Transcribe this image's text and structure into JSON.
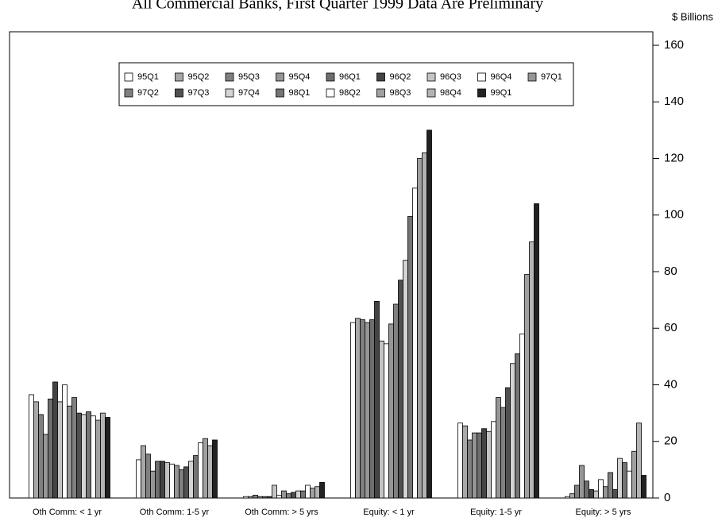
{
  "chart_data": {
    "type": "bar",
    "title": "All Commercial Banks, First Quarter 1999 Data Are Preliminary",
    "y_axis_label": "$ Billions",
    "categories": [
      "Oth Comm: < 1 yr",
      "Oth Comm: 1-5 yr",
      "Oth Comm: > 5 yrs",
      "Equity: < 1 yr",
      "Equity: 1-5 yr",
      "Equity: > 5 yrs"
    ],
    "ylim": [
      0,
      160
    ],
    "yticks": [
      0,
      20,
      40,
      60,
      80,
      100,
      120,
      140,
      160
    ],
    "series": [
      {
        "name": "95Q1",
        "color": "#ffffff",
        "values": [
          36.5,
          13.5,
          0.5,
          62,
          26.5,
          0.5
        ]
      },
      {
        "name": "95Q2",
        "color": "#a8a8a8",
        "values": [
          34,
          18.5,
          0.5,
          63.5,
          25.5,
          1.5
        ]
      },
      {
        "name": "95Q3",
        "color": "#808080",
        "values": [
          29.5,
          15.5,
          1,
          63,
          20.5,
          4.5
        ]
      },
      {
        "name": "95Q4",
        "color": "#969696",
        "values": [
          22.5,
          9.5,
          0.5,
          62,
          23,
          11.5
        ]
      },
      {
        "name": "96Q1",
        "color": "#6e6e6e",
        "values": [
          35,
          13,
          0.5,
          63,
          23,
          6
        ]
      },
      {
        "name": "96Q2",
        "color": "#444444",
        "values": [
          41,
          13,
          0.5,
          69.5,
          24.5,
          3
        ]
      },
      {
        "name": "96Q3",
        "color": "#c4c4c4",
        "values": [
          34,
          12.5,
          4.5,
          55.5,
          23.5,
          2.5
        ]
      },
      {
        "name": "96Q4",
        "color": "#ffffff",
        "values": [
          40,
          12,
          1,
          54.5,
          27,
          6.5
        ]
      },
      {
        "name": "97Q1",
        "color": "#969696",
        "values": [
          32.5,
          11.5,
          2.5,
          61.5,
          35.5,
          4
        ]
      },
      {
        "name": "97Q2",
        "color": "#808080",
        "values": [
          35.5,
          10,
          1.5,
          68.5,
          32,
          9
        ]
      },
      {
        "name": "97Q3",
        "color": "#505050",
        "values": [
          30,
          11,
          2,
          77,
          39,
          3
        ]
      },
      {
        "name": "97Q4",
        "color": "#d4d4d4",
        "values": [
          29.5,
          13,
          2.5,
          84,
          47.5,
          14
        ]
      },
      {
        "name": "98Q1",
        "color": "#747474",
        "values": [
          30.5,
          15,
          2.5,
          99.5,
          51,
          12.5
        ]
      },
      {
        "name": "98Q2",
        "color": "#ffffff",
        "values": [
          29,
          19.5,
          4.5,
          109.5,
          58,
          9.5
        ]
      },
      {
        "name": "98Q3",
        "color": "#a0a0a0",
        "values": [
          27.5,
          21,
          3.5,
          120,
          79,
          16.5
        ]
      },
      {
        "name": "98Q4",
        "color": "#b4b4b4",
        "values": [
          30,
          18.5,
          4,
          122,
          90.5,
          26.5
        ]
      },
      {
        "name": "99Q1",
        "color": "#222222",
        "values": [
          28.5,
          20.5,
          5.5,
          130,
          104,
          8
        ]
      }
    ]
  }
}
